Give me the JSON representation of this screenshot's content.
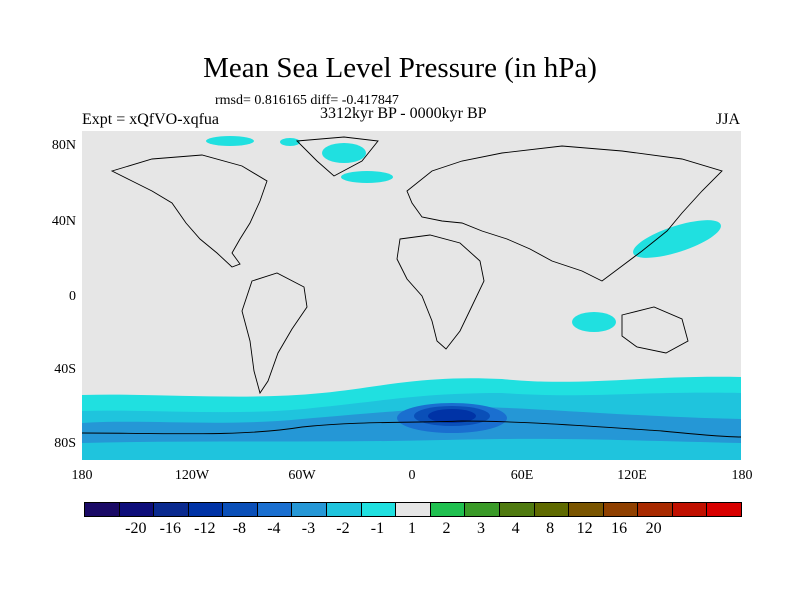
{
  "title": "Mean Sea Level Pressure (in hPa)",
  "stats": "rmsd= 0.816165 diff= -0.417847",
  "left_label": "Expt = xQfVO-xqfua",
  "center_label": "3312kyr BP - 0000kyr BP",
  "right_label": "JJA",
  "lat_labels": [
    "80N",
    "40N",
    "0",
    "40S",
    "80S"
  ],
  "lon_labels": [
    "180",
    "120W",
    "60W",
    "0",
    "60E",
    "120E",
    "180"
  ],
  "colorbar": {
    "colors": [
      "#1a0a66",
      "#0d0d7a",
      "#0a2a8f",
      "#0033a6",
      "#0a4fb8",
      "#1a6fd0",
      "#2597d6",
      "#1fc4dd",
      "#20e0e0",
      "#e6e6e6",
      "#20c050",
      "#3a9a28",
      "#4f7a10",
      "#5f6a00",
      "#7a5500",
      "#8f4000",
      "#a82a00",
      "#c01000",
      "#d80000"
    ],
    "labels": [
      "-20",
      "-16",
      "-12",
      "-8",
      "-4",
      "-3",
      "-2",
      "-1",
      "1",
      "2",
      "3",
      "4",
      "8",
      "12",
      "16",
      "20"
    ]
  },
  "map": {
    "background": "#e6e6e6",
    "low_colors": [
      "#20e0e0",
      "#1fc4dd",
      "#2597d6",
      "#1a6fd0",
      "#0a4fb8",
      "#0033a6"
    ]
  }
}
